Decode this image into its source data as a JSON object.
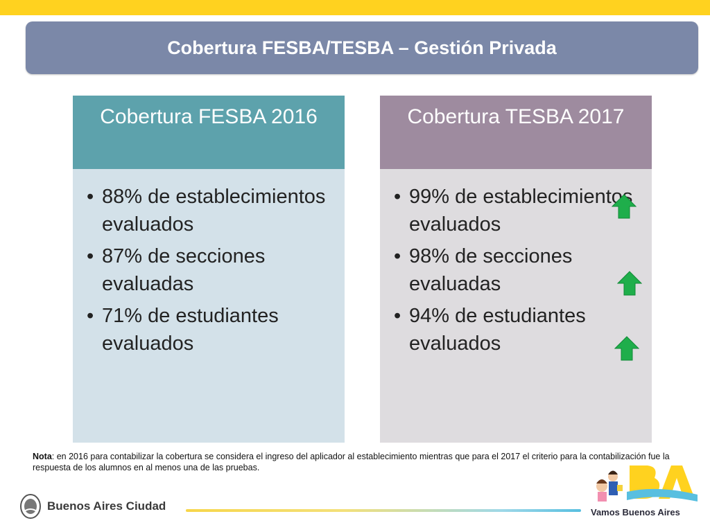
{
  "slide": {
    "title": "Cobertura FESBA/TESBA – Gestión Privada"
  },
  "cards": [
    {
      "heading": "Cobertura FESBA 2016",
      "items": [
        "88% de establecimientos evaluados",
        "87% de secciones evaluadas",
        "71% de estudiantes evaluados"
      ]
    },
    {
      "heading": "Cobertura TESBA 2017",
      "items": [
        "99% de establecimientos evaluados",
        "98% de secciones evaluadas",
        "94% de estudiantes evaluados"
      ],
      "indicator_icon": "up-arrow-icon",
      "indicator_color": "#1fae4b"
    }
  ],
  "bullet_char": "•",
  "note": {
    "label": "Nota",
    "text": ": en 2016 para contabilizar la cobertura se considera el ingreso del aplicador al establecimiento mientras que para el 2017 el criterio para la contabilización fue la respuesta de los alumnos en al menos una de las pruebas."
  },
  "footer": {
    "logo_text": "Buenos Aires Ciudad",
    "brand_text": "Vamos Buenos Aires"
  },
  "colors": {
    "top_bar": "#ffd21f",
    "title_box": "#7b88a8",
    "left_header": "#5da2ac",
    "left_body": "#d3e1e9",
    "right_header": "#9e8b9f",
    "right_body": "#dedcdf"
  }
}
